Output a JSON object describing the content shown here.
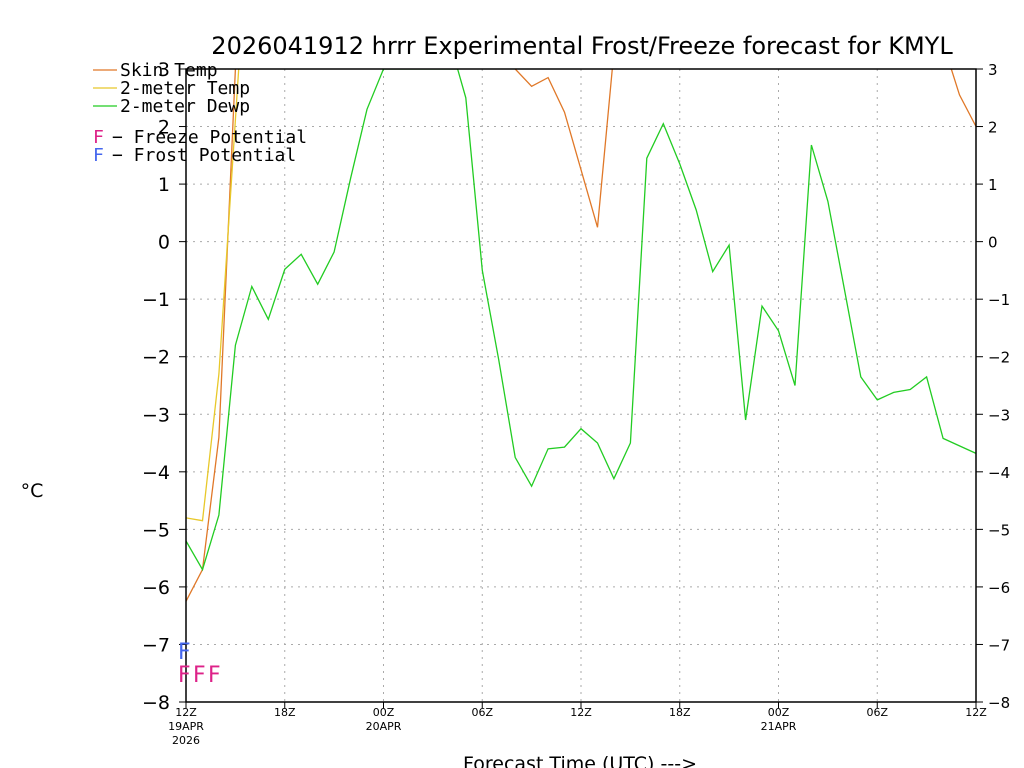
{
  "chart_data": {
    "type": "line",
    "title": "2026041912 hrrr Experimental Frost/Freeze forecast for KMYL",
    "xlabel": "Forecast Time (UTC) --->",
    "ylabel": "°C",
    "ylim": [
      -8,
      3
    ],
    "xlim": [
      0,
      48
    ],
    "y_ticks": [
      -8,
      -7,
      -6,
      -5,
      -4,
      -3,
      -2,
      -1,
      0,
      1,
      2,
      3
    ],
    "y_tick_labels": [
      "−8",
      "−7",
      "−6",
      "−5",
      "−4",
      "−3",
      "−2",
      "−1",
      "0",
      "1",
      "2",
      "3"
    ],
    "x_ticks": [
      {
        "x": 0,
        "label": "12Z",
        "sub1": "19APR",
        "sub2": "2026"
      },
      {
        "x": 6,
        "label": "18Z"
      },
      {
        "x": 12,
        "label": "00Z",
        "sub1": "20APR"
      },
      {
        "x": 18,
        "label": "06Z"
      },
      {
        "x": 24,
        "label": "12Z"
      },
      {
        "x": 30,
        "label": "18Z"
      },
      {
        "x": 36,
        "label": "00Z",
        "sub1": "21APR"
      },
      {
        "x": 42,
        "label": "06Z"
      },
      {
        "x": 48,
        "label": "12Z"
      }
    ],
    "grid": true,
    "series": [
      {
        "name": "Skin Temp",
        "color": "#e07828",
        "segments": [
          {
            "x": [
              0,
              1,
              2,
              3
            ],
            "y": [
              -6.25,
              -5.7,
              -3.4,
              3.0
            ]
          },
          {
            "x": [
              20,
              21,
              22,
              23,
              24,
              25,
              25.9
            ],
            "y": [
              3.0,
              2.7,
              2.85,
              2.25,
              1.25,
              0.25,
              3.0
            ]
          },
          {
            "x": [
              46.5,
              47,
              48
            ],
            "y": [
              3.0,
              2.55,
              2.0
            ]
          }
        ]
      },
      {
        "name": "2-meter Temp",
        "color": "#e8c82a",
        "segments": [
          {
            "x": [
              0,
              1,
              2,
              3.2
            ],
            "y": [
              -4.8,
              -4.85,
              -2.3,
              3.0
            ]
          }
        ]
      },
      {
        "name": "2-meter Dewp",
        "color": "#22cc22",
        "segments": [
          {
            "x": [
              0,
              1,
              2,
              3,
              4,
              5,
              6,
              7,
              8,
              9,
              10,
              11,
              12,
              16.5,
              17,
              18,
              19,
              20,
              21,
              22,
              23,
              24,
              25,
              26,
              27,
              28,
              29,
              30,
              31,
              32,
              33,
              34,
              35,
              36,
              37,
              38,
              39,
              40,
              41,
              42,
              43,
              44,
              45,
              46,
              47,
              48
            ],
            "y": [
              -5.2,
              -5.7,
              -4.75,
              -1.8,
              -0.78,
              -1.35,
              -0.48,
              -0.22,
              -0.74,
              -0.18,
              1.1,
              2.3,
              3.0,
              3.0,
              2.5,
              -0.5,
              -2.05,
              -3.75,
              -4.25,
              -3.6,
              -3.57,
              -3.25,
              -3.5,
              -4.12,
              -3.5,
              1.45,
              2.05,
              1.35,
              0.55,
              -0.52,
              -0.06,
              -3.1,
              -1.12,
              -1.55,
              -2.5,
              1.68,
              0.7,
              -0.82,
              -2.35,
              -2.75,
              -2.62,
              -2.57,
              -2.35,
              -3.42,
              -3.55,
              -3.68
            ]
          }
        ]
      }
    ],
    "legend": [
      {
        "label": "Skin Temp",
        "color": "#e07828"
      },
      {
        "label": "2-meter Temp",
        "color": "#e8c82a"
      },
      {
        "label": "2-meter Dewp",
        "color": "#22cc22"
      }
    ],
    "potential_legend": [
      {
        "letter": "F",
        "text": "− Freeze Potential",
        "color": "#dd2288"
      },
      {
        "letter": "F",
        "text": "− Frost Potential",
        "color": "#4466ee"
      }
    ],
    "frost_flags": {
      "x": [
        0
      ],
      "letter": "F",
      "color": "#4466ee"
    },
    "freeze_flags": {
      "x": [
        0,
        1,
        2
      ],
      "letter": "F",
      "color": "#dd2288"
    }
  }
}
